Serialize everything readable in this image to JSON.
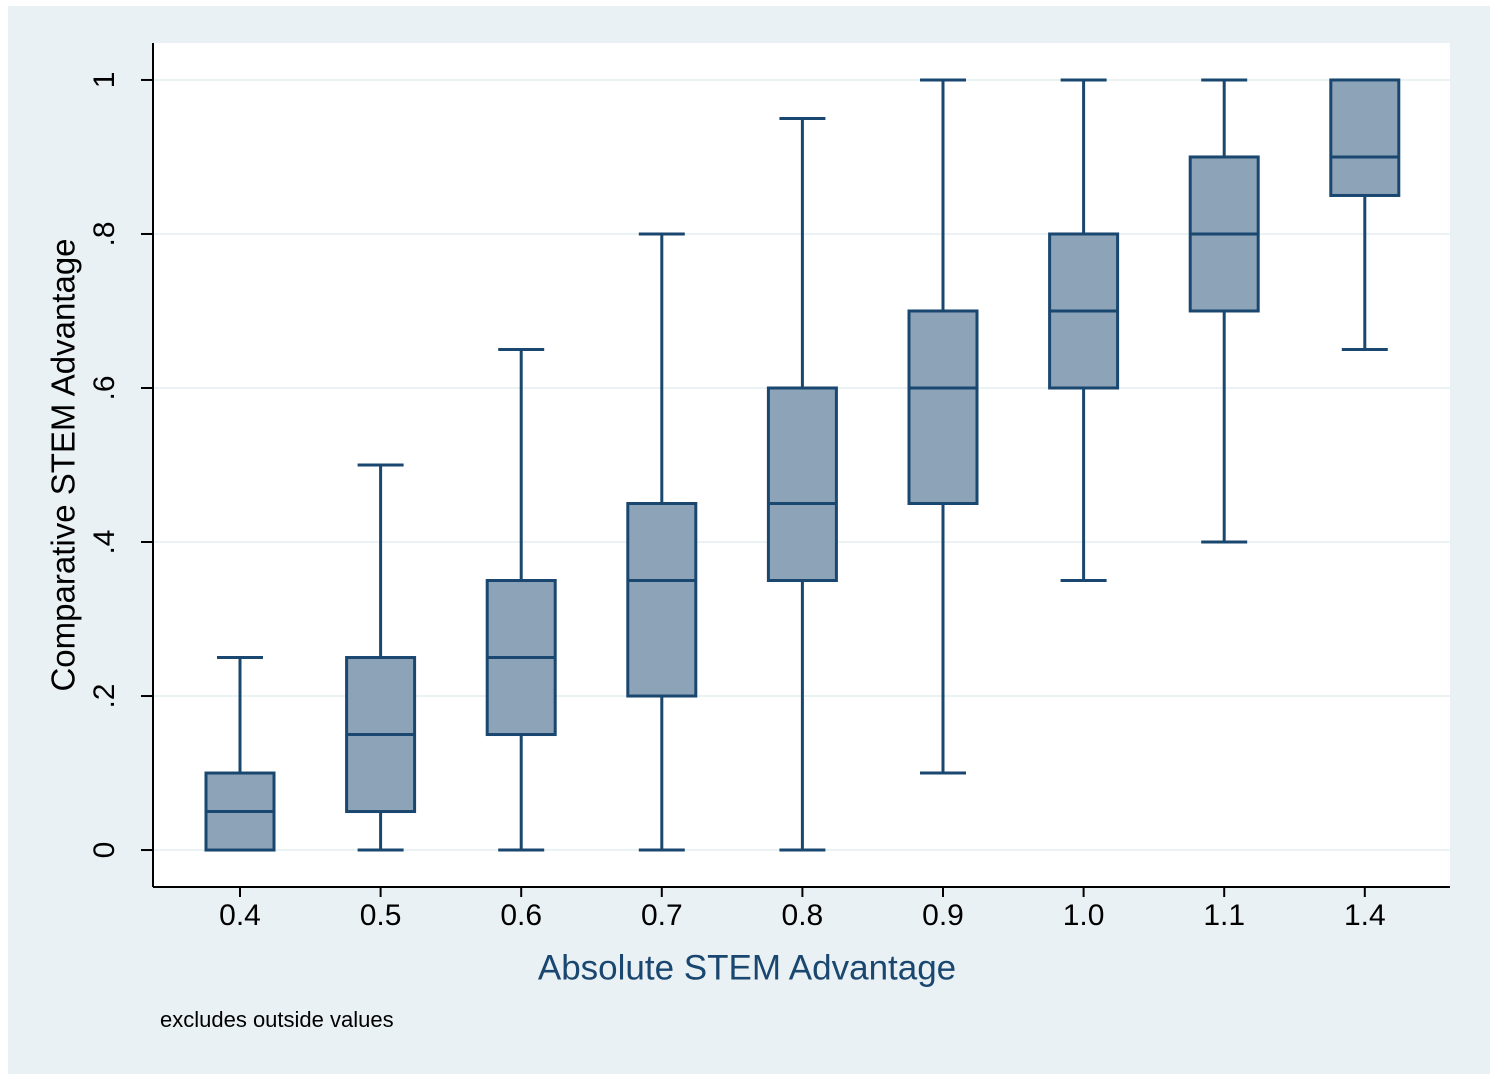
{
  "chart_data": {
    "type": "box",
    "x_label": "Absolute STEM Advantage",
    "y_label": "Comparative STEM Advantage",
    "note": "excludes outside values",
    "categories": [
      "0.4",
      "0.5",
      "0.6",
      "0.7",
      "0.8",
      "0.9",
      "1.0",
      "1.1",
      "1.4"
    ],
    "whisker_low": [
      0,
      0,
      0,
      0,
      0,
      0.1,
      0.35,
      0.4,
      0.65
    ],
    "q1": [
      0,
      0.05,
      0.15,
      0.2,
      0.35,
      0.45,
      0.6,
      0.7,
      0.85
    ],
    "median": [
      0.05,
      0.15,
      0.25,
      0.35,
      0.45,
      0.6,
      0.7,
      0.8,
      0.9
    ],
    "q3": [
      0.1,
      0.25,
      0.35,
      0.45,
      0.6,
      0.7,
      0.8,
      0.9,
      1
    ],
    "whisker_high": [
      0.25,
      0.5,
      0.65,
      0.8,
      0.95,
      1,
      1,
      1,
      1
    ],
    "box_color": "#8ca3b8",
    "line_color": "#1a476f",
    "ylim": [
      -0.048,
      1.048
    ],
    "yticks": [
      0,
      {
        "value": 0.2,
        "label": ".2"
      },
      {
        "value": 0.4,
        "label": ".4"
      },
      {
        "value": 0.6,
        "label": ".6"
      },
      {
        "value": 0.8,
        "label": ".8"
      },
      1
    ],
    "grid": true
  }
}
